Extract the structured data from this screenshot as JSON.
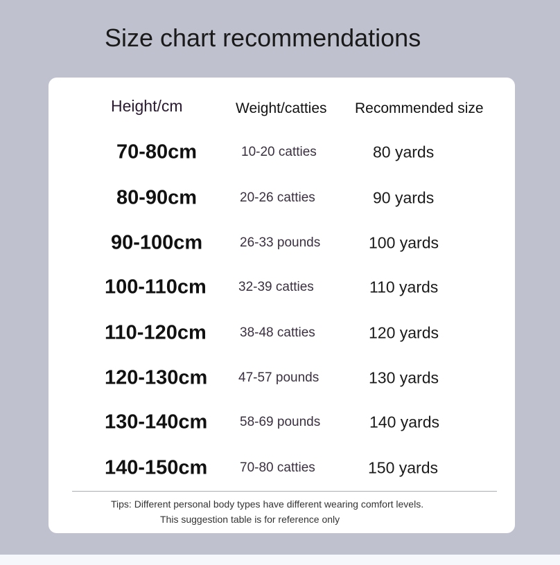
{
  "title": "Size chart recommendations",
  "table": {
    "headers": [
      "Height/cm",
      "Weight/catties",
      "Recommended size"
    ],
    "rows": [
      [
        "70-80cm",
        "10-20 catties",
        "80 yards"
      ],
      [
        "80-90cm",
        "20-26 catties",
        "90 yards"
      ],
      [
        "90-100cm",
        "26-33 pounds",
        "100 yards"
      ],
      [
        "100-110cm",
        "32-39 catties",
        "110 yards"
      ],
      [
        "110-120cm",
        "38-48 catties",
        "120 yards"
      ],
      [
        "120-130cm",
        "47-57 pounds",
        "130 yards"
      ],
      [
        "130-140cm",
        "58-69 pounds",
        "140 yards"
      ],
      [
        "140-150cm",
        "70-80 catties",
        "150 yards"
      ]
    ]
  },
  "tips": {
    "line1": "Tips: Different personal body types have different wearing comfort levels.",
    "line2": "This suggestion table is for reference only"
  }
}
